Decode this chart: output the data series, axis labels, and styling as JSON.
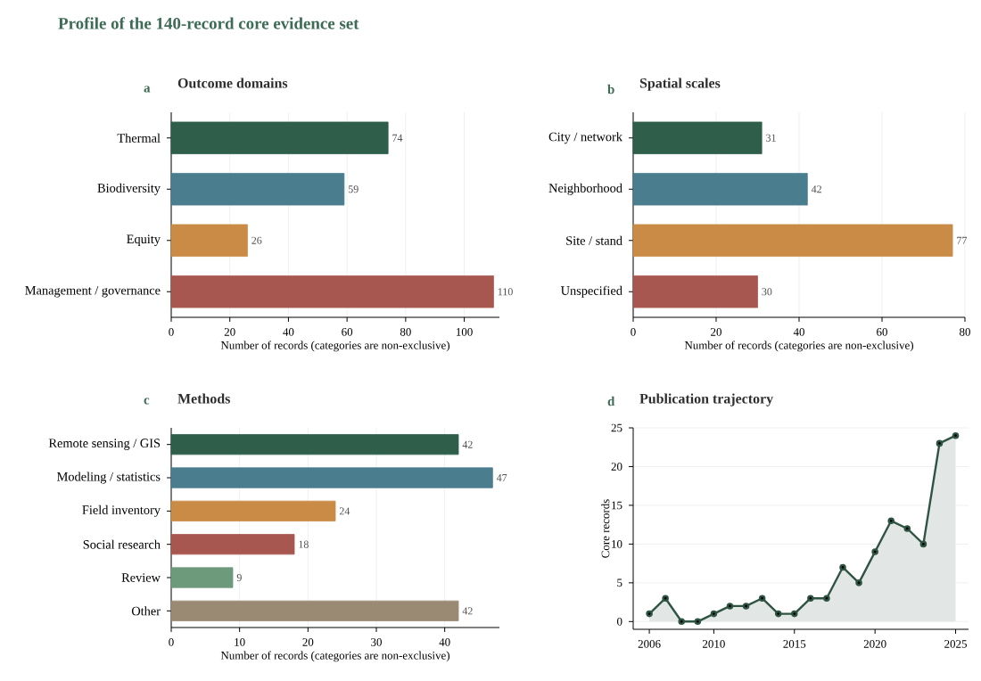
{
  "chart_data": [
    {
      "type": "bar",
      "orientation": "horizontal",
      "title": "Outcome domains",
      "xlabel": "Number of records (categories are non-exclusive)",
      "annotations": [
        "Profile of the 140-record core evidence set",
        "a"
      ],
      "categories": [
        "Thermal",
        "Biodiversity",
        "Equity",
        "Management / governance"
      ],
      "values": [
        74,
        59,
        26,
        110
      ],
      "colors": [
        "#2f5e4b",
        "#4a7d8e",
        "#c98b45",
        "#a85750"
      ],
      "xlim": [
        0,
        112
      ],
      "xticks": [
        0,
        20,
        40,
        60,
        80,
        100
      ],
      "grid": "x",
      "data_labels": true
    },
    {
      "type": "bar",
      "orientation": "horizontal",
      "title": "Spatial scales",
      "xlabel": "Number of records (categories are non-exclusive)",
      "annotations": [
        "b"
      ],
      "categories": [
        "City / network",
        "Neighborhood",
        "Site / stand",
        "Unspecified"
      ],
      "values": [
        31,
        42,
        77,
        30
      ],
      "colors": [
        "#2f5e4b",
        "#4a7d8e",
        "#c98b45",
        "#a85750"
      ],
      "xlim": [
        0,
        80
      ],
      "xticks": [
        0,
        20,
        40,
        60,
        80
      ],
      "grid": "x",
      "data_labels": true
    },
    {
      "type": "bar",
      "orientation": "horizontal",
      "title": "Methods",
      "xlabel": "Number of records (categories are non-exclusive)",
      "annotations": [
        "c"
      ],
      "categories": [
        "Remote sensing / GIS",
        "Modeling / statistics",
        "Field inventory",
        "Social research",
        "Review",
        "Other"
      ],
      "values": [
        42,
        47,
        24,
        18,
        9,
        42
      ],
      "colors": [
        "#2f5e4b",
        "#4a7d8e",
        "#c98b45",
        "#a85750",
        "#6e9a7c",
        "#9a8a74"
      ],
      "xlim": [
        0,
        48
      ],
      "xticks": [
        0,
        10,
        20,
        30,
        40
      ],
      "grid": "x",
      "data_labels": true
    },
    {
      "type": "area",
      "title": "Publication trajectory",
      "ylabel": "Core records",
      "annotations": [
        "d"
      ],
      "x": [
        2006,
        2007,
        2008,
        2009,
        2010,
        2011,
        2012,
        2013,
        2014,
        2015,
        2016,
        2017,
        2018,
        2019,
        2020,
        2021,
        2022,
        2023,
        2024,
        2025
      ],
      "series": [
        {
          "color": "#2f5443",
          "values": [
            1,
            3,
            0,
            0,
            1,
            2,
            2,
            3,
            1,
            1,
            3,
            3,
            7,
            5,
            9,
            13,
            12,
            10,
            23,
            24
          ]
        }
      ],
      "xlim": [
        2005,
        2025.8
      ],
      "ylim": [
        -1,
        25
      ],
      "xticks": [
        2006,
        2010,
        2015,
        2020,
        2025
      ],
      "yticks": [
        0,
        5,
        10,
        15,
        20,
        25
      ],
      "grid": "y",
      "marker": "circle",
      "line_style": "solid"
    }
  ]
}
